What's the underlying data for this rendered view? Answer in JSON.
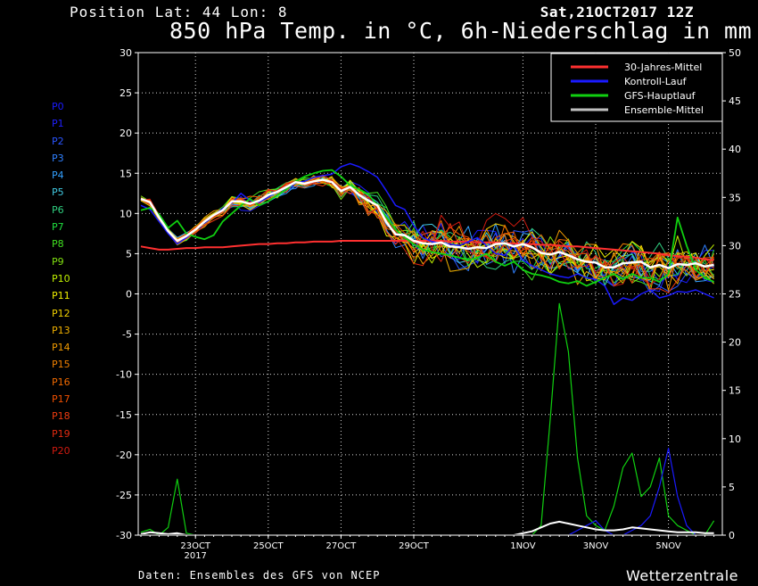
{
  "header": {
    "position_label": "Position   Lat: 44 Lon: 8",
    "datetime": "Sat,21OCT2017 12Z",
    "title": "850 hPa Temp. in °C, 6h-Niederschlag in mm"
  },
  "footer": {
    "source": "Daten: Ensembles des GFS von NCEP",
    "brand": "Wetterzentrale"
  },
  "members": [
    {
      "label": "P0",
      "color": "#1a1aff"
    },
    {
      "label": "P1",
      "color": "#2020ff"
    },
    {
      "label": "P2",
      "color": "#2a55ff"
    },
    {
      "label": "P3",
      "color": "#2f80ff"
    },
    {
      "label": "P4",
      "color": "#33a0ff"
    },
    {
      "label": "P5",
      "color": "#40c8e0"
    },
    {
      "label": "P6",
      "color": "#30d080"
    },
    {
      "label": "P7",
      "color": "#20e040"
    },
    {
      "label": "P8",
      "color": "#40e020"
    },
    {
      "label": "P9",
      "color": "#80e010"
    },
    {
      "label": "P10",
      "color": "#c0f000"
    },
    {
      "label": "P11",
      "color": "#f0f000"
    },
    {
      "label": "P12",
      "color": "#f0d000"
    },
    {
      "label": "P13",
      "color": "#f0b000"
    },
    {
      "label": "P14",
      "color": "#f09a00"
    },
    {
      "label": "P15",
      "color": "#f08000"
    },
    {
      "label": "P16",
      "color": "#f06a00"
    },
    {
      "label": "P17",
      "color": "#f05000"
    },
    {
      "label": "P18",
      "color": "#f03c10"
    },
    {
      "label": "P19",
      "color": "#e02a10"
    },
    {
      "label": "P20",
      "color": "#d01a10"
    }
  ],
  "chart_data": {
    "type": "line",
    "x_start": "21OCT2017 12Z",
    "x_step_hours": 6,
    "xticks": [
      {
        "label": "23OCT",
        "sublabel": "2017",
        "x": 6
      },
      {
        "label": "25OCT",
        "x": 14
      },
      {
        "label": "27OCT",
        "x": 22
      },
      {
        "label": "29OCT",
        "x": 30
      },
      {
        "label": "1NOV",
        "x": 42
      },
      {
        "label": "3NOV",
        "x": 50
      },
      {
        "label": "5NOV",
        "x": 58
      }
    ],
    "x_range": [
      0,
      63
    ],
    "y_left": {
      "min": -30,
      "max": 30,
      "step": 5,
      "ticks": [
        "30",
        "25",
        "20",
        "15",
        "10",
        "5",
        "0",
        "-5",
        "-10",
        "-15",
        "-20",
        "-25",
        "-30"
      ]
    },
    "y_right": {
      "min": 0,
      "max": 50,
      "step": 5,
      "ticks": [
        "50",
        "45",
        "40",
        "35",
        "30",
        "25",
        "20",
        "15",
        "10",
        "5",
        "0"
      ]
    },
    "grid": true,
    "legend_position": "top-right",
    "legend": [
      {
        "label": "30-Jahres-Mittel",
        "color": "#ff3030"
      },
      {
        "label": "Kontroll-Lauf",
        "color": "#1a1aff"
      },
      {
        "label": "GFS-Hauptlauf",
        "color": "#10d010"
      },
      {
        "label": "Ensemble-Mittel",
        "color": "#c0c0c0"
      }
    ],
    "climate_mean": [
      5.9,
      5.7,
      5.5,
      5.5,
      5.6,
      5.7,
      5.7,
      5.8,
      5.8,
      5.8,
      5.9,
      6.0,
      6.1,
      6.2,
      6.2,
      6.3,
      6.3,
      6.4,
      6.4,
      6.5,
      6.5,
      6.5,
      6.6,
      6.6,
      6.6,
      6.6,
      6.6,
      6.6,
      6.6,
      6.6,
      6.6,
      6.6,
      6.6,
      6.6,
      6.5,
      6.5,
      6.5,
      6.4,
      6.4,
      6.4,
      6.3,
      6.3,
      6.2,
      6.2,
      6.1,
      6.1,
      6.0,
      5.9,
      5.9,
      5.8,
      5.7,
      5.6,
      5.5,
      5.4,
      5.3,
      5.2,
      5.1,
      5.0,
      4.8,
      4.7,
      4.6,
      4.5,
      4.3,
      4.2
    ],
    "control_run": [
      11.0,
      10.5,
      9.0,
      7.5,
      6.2,
      7.0,
      8.0,
      9.0,
      9.8,
      10.6,
      11.3,
      12.5,
      11.6,
      11.4,
      12.0,
      12.8,
      13.0,
      13.8,
      14.0,
      14.5,
      14.7,
      14.9,
      15.8,
      16.2,
      15.8,
      15.2,
      14.5,
      12.8,
      11.0,
      10.5,
      8.5,
      7.0,
      6.5,
      6.3,
      6.2,
      6.0,
      6.5,
      7.0,
      6.0,
      5.0,
      4.8,
      6.0,
      4.2,
      3.5,
      3.0,
      2.5,
      2.2,
      2.0,
      2.5,
      2.0,
      1.8,
      1.0,
      -1.3,
      -0.5,
      -0.8,
      0.0,
      0.5,
      -0.5,
      -0.2,
      0.3,
      0.2,
      0.5,
      0.0,
      -0.5
    ],
    "main_run": [
      10.4,
      10.7,
      9.9,
      8.2,
      9.1,
      7.5,
      7.1,
      6.8,
      7.3,
      9.0,
      10.0,
      11.0,
      11.8,
      11.0,
      11.5,
      12.3,
      13.0,
      14.0,
      14.6,
      15.0,
      15.3,
      15.4,
      14.6,
      13.5,
      13.0,
      12.4,
      11.0,
      9.5,
      8.0,
      7.0,
      6.2,
      5.5,
      5.2,
      5.0,
      4.8,
      4.5,
      4.2,
      4.5,
      5.0,
      4.0,
      3.5,
      4.0,
      3.0,
      2.5,
      2.3,
      2.0,
      1.5,
      1.3,
      1.6,
      1.0,
      1.5,
      2.0,
      2.5,
      1.8,
      2.5,
      2.0,
      2.0,
      1.5,
      2.5,
      9.5,
      6.0,
      3.0,
      2.0,
      1.5
    ],
    "ensemble_mean": [
      11.8,
      11.4,
      9.5,
      7.8,
      6.6,
      7.2,
      8.0,
      9.0,
      9.8,
      10.4,
      11.5,
      11.5,
      11.2,
      11.6,
      12.3,
      12.7,
      13.3,
      13.9,
      13.7,
      14.0,
      14.2,
      13.9,
      12.8,
      13.3,
      12.3,
      11.6,
      11.0,
      8.9,
      7.4,
      7.3,
      6.6,
      6.3,
      6.2,
      6.4,
      5.9,
      5.8,
      5.6,
      5.8,
      5.7,
      6.2,
      6.3,
      5.9,
      6.2,
      5.8,
      5.1,
      4.9,
      5.2,
      4.8,
      4.3,
      4.0,
      3.9,
      3.3,
      3.3,
      3.8,
      3.9,
      4.0,
      3.3,
      3.6,
      3.2,
      3.7,
      3.6,
      3.8,
      3.4,
      3.6
    ],
    "precip_main": [
      0.3,
      0.6,
      0.0,
      0.8,
      5.8,
      0.2,
      0.0,
      0.0,
      0.0,
      0.0,
      0.0,
      0.0,
      0.0,
      0.0,
      0.0,
      0.0,
      0.0,
      0.0,
      0.0,
      0.0,
      0.0,
      0.0,
      0.0,
      0.0,
      0.0,
      0.0,
      0.0,
      0.0,
      0.0,
      0.0,
      0.0,
      0.0,
      0.0,
      0.0,
      0.0,
      0.0,
      0.0,
      0.0,
      0.0,
      0.0,
      0.0,
      0.0,
      0.0,
      0.0,
      1.0,
      12.0,
      24.0,
      19.0,
      8.0,
      2.0,
      1.0,
      0.5,
      3.0,
      7.0,
      8.5,
      4.0,
      5.0,
      8.0,
      2.0,
      1.0,
      0.5,
      0.0,
      0.0,
      1.5
    ],
    "precip_control": [
      0.0,
      0.0,
      0.0,
      0.0,
      0.0,
      0.0,
      0.0,
      0.0,
      0.0,
      0.0,
      0.0,
      0.0,
      0.0,
      0.0,
      0.0,
      0.0,
      0.0,
      0.0,
      0.0,
      0.0,
      0.0,
      0.0,
      0.0,
      0.0,
      0.0,
      0.0,
      0.0,
      0.0,
      0.0,
      0.0,
      0.0,
      0.0,
      0.0,
      0.0,
      0.0,
      0.0,
      0.0,
      0.0,
      0.0,
      0.0,
      0.0,
      0.0,
      0.0,
      0.0,
      0.0,
      0.0,
      0.0,
      0.0,
      0.5,
      1.0,
      1.5,
      0.5,
      0.0,
      0.0,
      0.5,
      1.0,
      2.0,
      5.0,
      9.0,
      4.0,
      1.0,
      0.0,
      0.0,
      0.0
    ],
    "precip_mean": [
      0.1,
      0.3,
      0.2,
      0.1,
      0.2,
      0.0,
      0.0,
      0.0,
      0.0,
      0.0,
      0.0,
      0.0,
      0.0,
      0.0,
      0.0,
      0.0,
      0.0,
      0.0,
      0.0,
      0.0,
      0.0,
      0.0,
      0.0,
      0.0,
      0.0,
      0.0,
      0.0,
      0.0,
      0.0,
      0.0,
      0.0,
      0.0,
      0.0,
      0.0,
      0.0,
      0.0,
      0.0,
      0.0,
      0.0,
      0.0,
      0.0,
      0.0,
      0.2,
      0.4,
      0.8,
      1.2,
      1.4,
      1.2,
      1.0,
      0.8,
      0.6,
      0.5,
      0.5,
      0.6,
      0.8,
      0.7,
      0.6,
      0.5,
      0.4,
      0.3,
      0.3,
      0.3,
      0.2,
      0.2
    ]
  }
}
